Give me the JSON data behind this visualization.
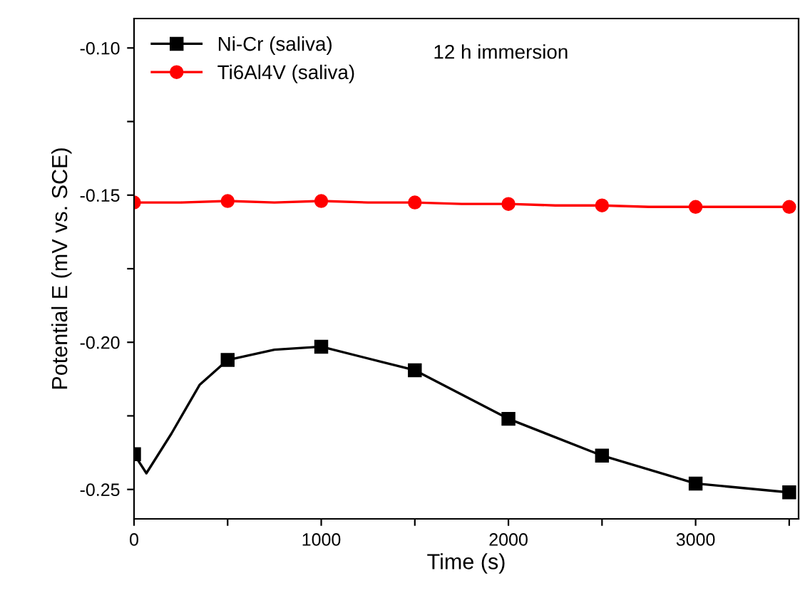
{
  "chart_data": {
    "type": "line",
    "xlabel": "Time (s)",
    "ylabel": "Potential E (mV vs. SCE)",
    "annotations": [
      "12 h immersion"
    ],
    "xlim": [
      0,
      3550
    ],
    "xticks": [
      0,
      {
        "value": 500,
        "label": null
      },
      1000,
      {
        "value": 1500,
        "label": null
      },
      2000,
      {
        "value": 2500,
        "label": null
      },
      3000,
      {
        "value": 3500,
        "label": null
      }
    ],
    "ylim": [
      -0.26,
      -0.09
    ],
    "yticks": [
      {
        "value": -0.25,
        "label": "-0.25"
      },
      {
        "value": -0.225,
        "label": null
      },
      {
        "value": -0.2,
        "label": "-0.20"
      },
      {
        "value": -0.175,
        "label": null
      },
      {
        "value": -0.15,
        "label": "-0.15"
      },
      {
        "value": -0.125,
        "label": null
      },
      {
        "value": -0.1,
        "label": "-0.10"
      }
    ],
    "grid": false,
    "legend": "top left",
    "line_style": "solid",
    "series": [
      {
        "name": "Ni-Cr (saliva)",
        "color": "#000000",
        "marker": "square",
        "x": [
          0,
          66,
          200,
          350,
          500,
          750,
          1000,
          1500,
          2000,
          2500,
          3000,
          3500
        ],
        "values": [
          -0.238,
          -0.2445,
          -0.231,
          -0.2145,
          -0.206,
          -0.2025,
          -0.2015,
          -0.2095,
          -0.226,
          -0.2385,
          -0.248,
          -0.251
        ]
      },
      {
        "name": "Ti6Al4V (saliva)",
        "color": "#ff0000",
        "marker": "circle",
        "x": [
          0,
          250,
          500,
          750,
          1000,
          1250,
          1500,
          1750,
          2000,
          2250,
          2500,
          2750,
          3000,
          3250,
          3500
        ],
        "values": [
          -0.1525,
          -0.1525,
          -0.152,
          -0.1525,
          -0.152,
          -0.1525,
          -0.1525,
          -0.153,
          -0.153,
          -0.1535,
          -0.1535,
          -0.154,
          -0.154,
          -0.154,
          -0.154
        ]
      }
    ]
  }
}
